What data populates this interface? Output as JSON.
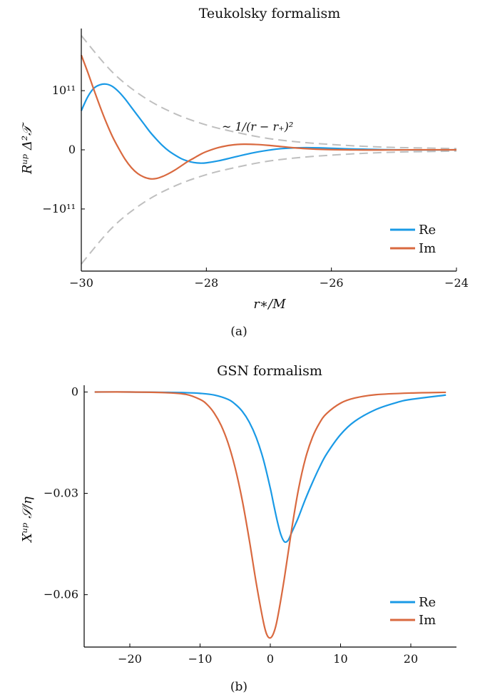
{
  "colors": {
    "re": "#1a9ae6",
    "im": "#d9693f",
    "envelope": "#bfbfbf",
    "axis": "#000000"
  },
  "chart_data": [
    {
      "type": "line",
      "title": "Teukolsky formalism",
      "xlabel": "r∗/M",
      "ylabel": "Rᵘᵖ Δ²𝒯",
      "caption": "(a)",
      "xlim": [
        -30,
        -24
      ],
      "ylim": [
        -205000000000.0,
        205000000000.0
      ],
      "xticks": [
        -30,
        -28,
        -26,
        -24
      ],
      "xtick_labels": [
        "−30",
        "−28",
        "−26",
        "−24"
      ],
      "yticks": [
        100000000000.0,
        0,
        -100000000000.0
      ],
      "ytick_labels": [
        "10¹¹",
        "0",
        "−10¹¹"
      ],
      "annotation": "~ 1/(r − r₊)²",
      "legend": {
        "position": "bottom-right",
        "entries": [
          "Re",
          "Im"
        ]
      },
      "grid": false,
      "series": [
        {
          "name": "Re",
          "color": "#1a9ae6",
          "x": [
            -30,
            -29.9,
            -29.8,
            -29.7,
            -29.6,
            -29.5,
            -29.4,
            -29.3,
            -29.2,
            -29.1,
            -29.0,
            -28.9,
            -28.8,
            -28.7,
            -28.6,
            -28.5,
            -28.4,
            -28.3,
            -28.2,
            -28.1,
            -28.0,
            -27.8,
            -27.6,
            -27.4,
            -27.2,
            -27.0,
            -26.8,
            -26.6,
            -26.4,
            -26.2,
            -26.0,
            -25.8,
            -25.6,
            -25.4,
            -25.2,
            -25.0,
            -24.8,
            -24.6,
            -24.4,
            -24.2,
            -24.0
          ],
          "y": [
            66000000000.0,
            89000000000.0,
            104000000000.0,
            110000000000.0,
            111000000000.0,
            107000000000.0,
            98000000000.0,
            86000000000.0,
            72000000000.0,
            58000000000.0,
            44000000000.0,
            30000000000.0,
            18000000000.0,
            7000000000.0,
            -2000000000.0,
            -9000000000.0,
            -15000000000.0,
            -19000000000.0,
            -21500000000.0,
            -22500000000.0,
            -22000000000.0,
            -18500000000.0,
            -13500000000.0,
            -8500000000.0,
            -4000000000.0,
            -500000000.0,
            2000000000.0,
            3300000000.0,
            3600000000.0,
            3300000000.0,
            2600000000.0,
            1900000000.0,
            1300000000.0,
            800000000.0,
            400000000.0,
            100000000.0,
            -100000000.0,
            -200000000.0,
            -200000000.0,
            -100000000.0,
            0
          ]
        },
        {
          "name": "Im",
          "color": "#d9693f",
          "x": [
            -30,
            -29.9,
            -29.8,
            -29.7,
            -29.6,
            -29.5,
            -29.4,
            -29.3,
            -29.2,
            -29.1,
            -29.0,
            -28.9,
            -28.8,
            -28.7,
            -28.6,
            -28.5,
            -28.4,
            -28.3,
            -28.2,
            -28.1,
            -28.0,
            -27.8,
            -27.6,
            -27.4,
            -27.2,
            -27.0,
            -26.8,
            -26.6,
            -26.4,
            -26.2,
            -26.0,
            -25.8,
            -25.6,
            -25.4,
            -25.2,
            -25.0,
            -24.8,
            -24.6,
            -24.4,
            -24.2,
            -24.0
          ],
          "y": [
            160000000000.0,
            132000000000.0,
            102000000000.0,
            73000000000.0,
            46000000000.0,
            22000000000.0,
            2000000000.0,
            -16000000000.0,
            -30000000000.0,
            -40000000000.0,
            -46000000000.0,
            -49000000000.0,
            -48500000000.0,
            -45000000000.0,
            -40000000000.0,
            -34000000000.0,
            -27000000000.0,
            -20000000000.0,
            -14000000000.0,
            -8000000000.0,
            -3000000000.0,
            4000000000.0,
            8000000000.0,
            9500000000.0,
            9000000000.0,
            7500000000.0,
            5500000000.0,
            3500000000.0,
            2000000000.0,
            900000000.0,
            300000000.0,
            0,
            -200000000.0,
            -300000000.0,
            -300000000.0,
            -200000000.0,
            -100000000.0,
            0,
            0,
            0,
            0
          ]
        },
        {
          "name": "",
          "color": "#bfbfbf",
          "dashed": true,
          "x": [
            -30,
            -29.5,
            -29,
            -28.5,
            -28,
            -27.5,
            -27,
            -26.5,
            -26,
            -25.5,
            -25,
            -24.5,
            -24
          ],
          "y": [
            193000000000.0,
            131000000000.0,
            89000000000.0,
            61000000000.0,
            42000000000.0,
            29000000000.0,
            19000000000.0,
            13000000000.0,
            9000000000.0,
            6000000000.0,
            4000000000.0,
            3000000000.0,
            2000000000.0
          ]
        },
        {
          "name": "",
          "color": "#bfbfbf",
          "dashed": true,
          "x": [
            -30,
            -29.5,
            -29,
            -28.5,
            -28,
            -27.5,
            -27,
            -26.5,
            -26,
            -25.5,
            -25,
            -24.5,
            -24
          ],
          "y": [
            -193000000000.0,
            -131000000000.0,
            -89000000000.0,
            -61000000000.0,
            -42000000000.0,
            -29000000000.0,
            -19000000000.0,
            -13000000000.0,
            -9000000000.0,
            -6000000000.0,
            -4000000000.0,
            -3000000000.0,
            -2000000000.0
          ]
        }
      ]
    },
    {
      "type": "line",
      "title": "GSN formalism",
      "xlabel": "",
      "ylabel": "Xᵘᵖ 𝒮/η",
      "caption": "(b)",
      "xlim": [
        -26.5,
        26.5
      ],
      "ylim": [
        -0.0755,
        0.002
      ],
      "xticks": [
        -20,
        -10,
        0,
        10,
        20
      ],
      "xtick_labels": [
        "−20",
        "−10",
        "0",
        "10",
        "20"
      ],
      "yticks": [
        0,
        -0.03,
        -0.06
      ],
      "ytick_labels": [
        "0",
        "−0.03",
        "−0.06"
      ],
      "legend": {
        "position": "bottom-right",
        "entries": [
          "Re",
          "Im"
        ]
      },
      "grid": false,
      "series": [
        {
          "name": "Re",
          "color": "#1a9ae6",
          "x": [
            -25,
            -20,
            -15,
            -12,
            -10,
            -8,
            -6,
            -5,
            -4,
            -3,
            -2,
            -1,
            0,
            0.5,
            1,
            1.5,
            2,
            2.5,
            3,
            3.5,
            4,
            5,
            6,
            7,
            8,
            10,
            12,
            15,
            18,
            20,
            25
          ],
          "y": [
            0,
            0,
            -0.0001,
            -0.0002,
            -0.0004,
            -0.0009,
            -0.0022,
            -0.0036,
            -0.0057,
            -0.0089,
            -0.0135,
            -0.0199,
            -0.0285,
            -0.0335,
            -0.0383,
            -0.0422,
            -0.0443,
            -0.044,
            -0.0418,
            -0.0395,
            -0.0371,
            -0.0317,
            -0.0268,
            -0.0223,
            -0.0184,
            -0.0126,
            -0.0087,
            -0.0052,
            -0.0031,
            -0.0022,
            -0.0009
          ]
        },
        {
          "name": "Im",
          "color": "#d9693f",
          "x": [
            -25,
            -20,
            -15,
            -12,
            -10,
            -9,
            -8,
            -7,
            -6,
            -5,
            -4,
            -3,
            -2,
            -1,
            -0.5,
            0,
            0.5,
            1,
            2,
            3,
            4,
            5,
            6,
            7,
            8,
            10,
            12,
            15,
            20,
            25
          ],
          "y": [
            0,
            0,
            -0.0002,
            -0.0007,
            -0.0022,
            -0.0037,
            -0.0062,
            -0.0099,
            -0.0152,
            -0.0225,
            -0.032,
            -0.0437,
            -0.0566,
            -0.0679,
            -0.0718,
            -0.0728,
            -0.0712,
            -0.0672,
            -0.0551,
            -0.0412,
            -0.0289,
            -0.0197,
            -0.0134,
            -0.0092,
            -0.0064,
            -0.0033,
            -0.0018,
            -0.0008,
            -0.0003,
            -0.0001
          ]
        }
      ]
    }
  ]
}
